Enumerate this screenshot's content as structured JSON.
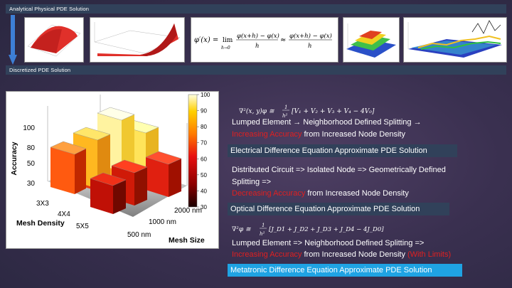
{
  "top_bar": {
    "label": "Analytical Physical PDE Solution"
  },
  "mid_bar": {
    "label": "Discretized PDE Solution"
  },
  "formula_main": "φ′(x) = lim h→0 (φ(x+h) − φ(x)) / h ≈ (φ(x+h) − φ(x)) / h",
  "right_panel": {
    "eq1": "∇²(x, y)φ ≅ (1/h²)[V₁ + V₂ + V₃ + V₄ − 4V₀]",
    "block1": {
      "line1": "Lumped Element → Neighborhood Defined Splitting →",
      "line2_red": "Increasing Accuracy",
      "line2_rest": " from Increased Node Density",
      "header": "Electrical Difference Equation Approximate PDE Solution"
    },
    "block2": {
      "line1": "Distributed Circuit => Isolated Node => Geometrically Defined",
      "line2": "Splitting =>",
      "line3_red": "Decreasing Accuracy",
      "line3_rest": " from Increased Node Density",
      "header": "Optical Difference Equation Approximate PDE Solution"
    },
    "eq2": "∇²φ ≅ (1/h²)[J_D1 + J_D2 + J_D3 + J_D4 − 4J_D0]",
    "block3": {
      "line1": "Lumped Element => Neighborhood Defined Splitting =>",
      "line2_red": "Increasing Accuracy",
      "line2_mid": " from Increased Node Density ",
      "line2_red2": "(With Limits)",
      "header": "Metatronic Difference Equation Approximate PDE Solution"
    }
  },
  "chart_data": {
    "type": "bar",
    "title": "",
    "zlabel": "Accuracy",
    "xlabel": "Mesh Density",
    "ylabel": "Mesh Size",
    "mesh_density": [
      "3X3",
      "4X4",
      "5X5"
    ],
    "mesh_size": [
      "500 nm",
      "1000 nm",
      "2000 nm"
    ],
    "z_ticks": [
      "30",
      "50",
      "80",
      "100"
    ],
    "colorbar_ticks": [
      "100",
      "90",
      "80",
      "70",
      "60",
      "50",
      "40",
      "30"
    ],
    "colorbar_range": [
      30,
      100
    ],
    "colormap": [
      "#1a0000",
      "#8b0000",
      "#e81010",
      "#ff7a00",
      "#ffd000",
      "#ffffe0"
    ]
  }
}
